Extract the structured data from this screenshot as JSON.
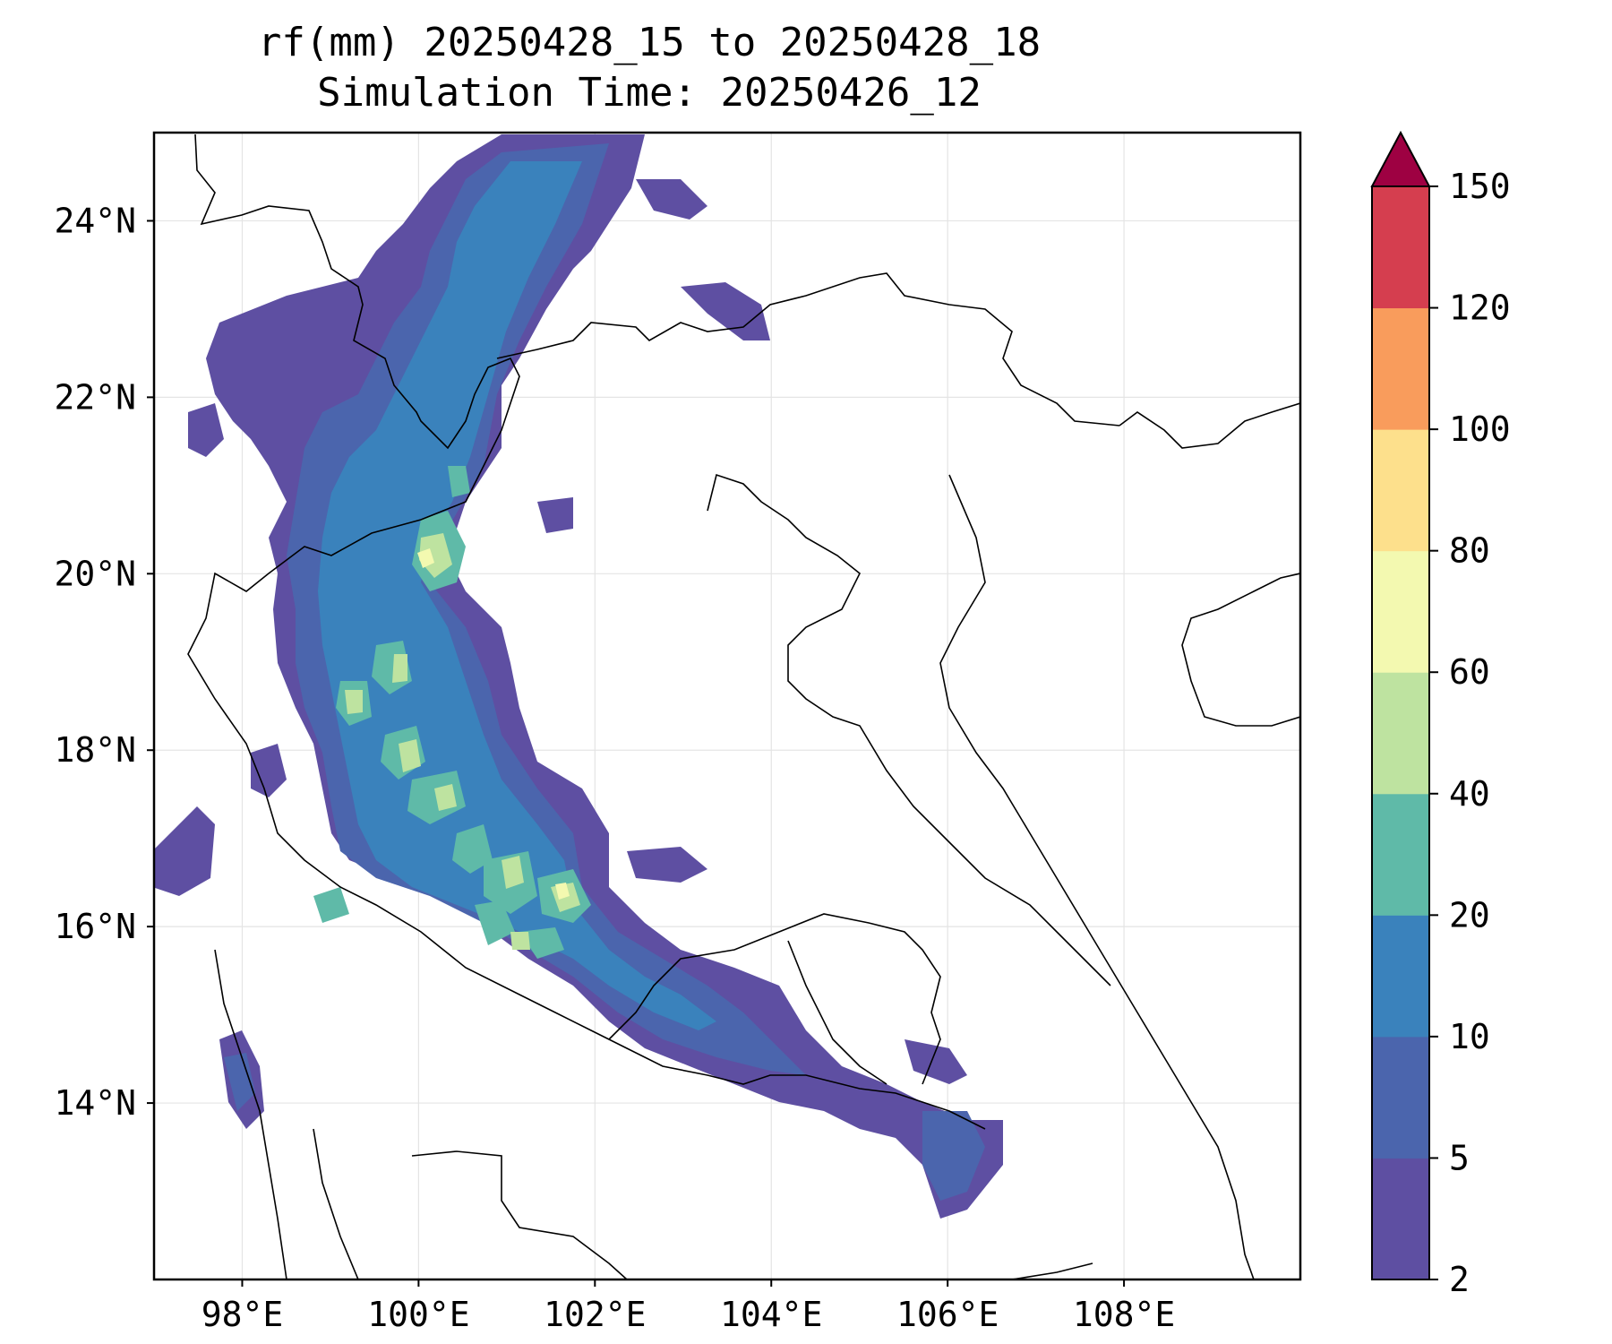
{
  "title": {
    "line1": "rf(mm) 20250428_15 to 20250428_18",
    "line2": "Simulation Time: 20250426_12"
  },
  "map": {
    "lon_range": [
      97,
      110
    ],
    "lat_range": [
      12,
      25
    ],
    "lon_ticks": [
      {
        "value": 98,
        "label": "98°E"
      },
      {
        "value": 100,
        "label": "100°E"
      },
      {
        "value": 102,
        "label": "102°E"
      },
      {
        "value": 104,
        "label": "104°E"
      },
      {
        "value": 106,
        "label": "106°E"
      },
      {
        "value": 108,
        "label": "108°E"
      }
    ],
    "lat_ticks": [
      {
        "value": 24,
        "label": "24°N"
      },
      {
        "value": 22,
        "label": "22°N"
      },
      {
        "value": 20,
        "label": "20°N"
      },
      {
        "value": 18,
        "label": "18°N"
      },
      {
        "value": 16,
        "label": "16°N"
      },
      {
        "value": 14,
        "label": "14°N"
      }
    ],
    "grid": true
  },
  "colorbar": {
    "levels": [
      {
        "value": 2,
        "label": "2"
      },
      {
        "value": 5,
        "label": "5"
      },
      {
        "value": 10,
        "label": "10"
      },
      {
        "value": 20,
        "label": "20"
      },
      {
        "value": 40,
        "label": "40"
      },
      {
        "value": 60,
        "label": "60"
      },
      {
        "value": 80,
        "label": "80"
      },
      {
        "value": 100,
        "label": "100"
      },
      {
        "value": 120,
        "label": "120"
      },
      {
        "value": 150,
        "label": "150"
      }
    ],
    "colors": [
      "#5e4fa2",
      "#4b65ad",
      "#3a82bc",
      "#5fbaa8",
      "#bee3a0",
      "#f3f9b0",
      "#fde08c",
      "#f99c5c",
      "#d53e4f"
    ],
    "extend_color": "#9e0142"
  }
}
